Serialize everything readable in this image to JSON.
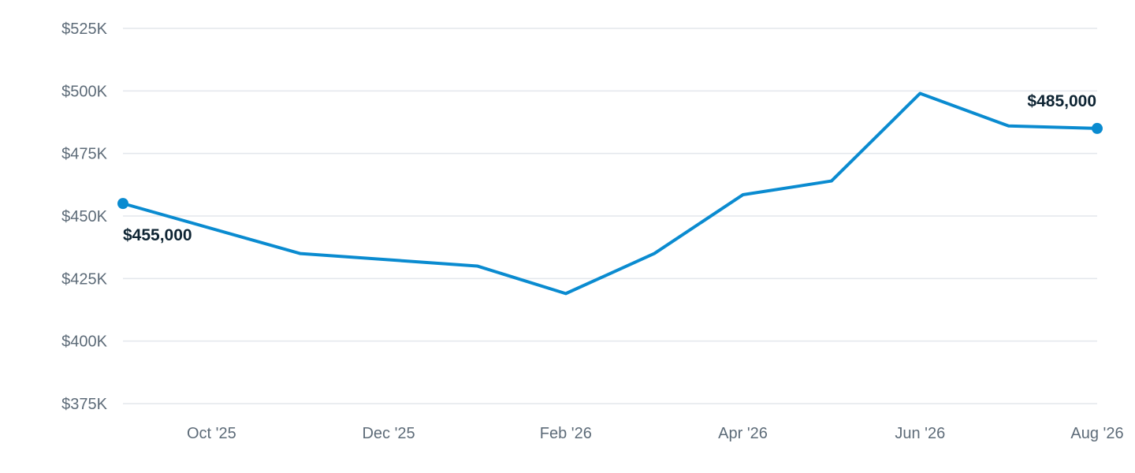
{
  "colors": {
    "series": "#0a8bd0",
    "grid": "#e3e7ec",
    "tick_text": "#5d6b78",
    "label_text": "#0e2433"
  },
  "chart_data": {
    "type": "line",
    "title": "",
    "xlabel": "",
    "ylabel": "",
    "grid": true,
    "ylim": [
      375000,
      525000
    ],
    "y_ticks": [
      375000,
      400000,
      425000,
      450000,
      475000,
      500000,
      525000
    ],
    "y_tick_labels": [
      "$375K",
      "$400K",
      "$425K",
      "$450K",
      "$475K",
      "$500K",
      "$525K"
    ],
    "x_range": [
      "2025-09",
      "2026-08"
    ],
    "x_ticks": [
      "2025-10",
      "2025-12",
      "2026-02",
      "2026-04",
      "2026-06",
      "2026-08"
    ],
    "x_tick_labels": [
      "Oct '25",
      "Dec '25",
      "Feb '26",
      "Apr '26",
      "Jun '26",
      "Aug '26"
    ],
    "series": [
      {
        "x": [
          "2025-09",
          "2025-11",
          "2026-01",
          "2026-02",
          "2026-03",
          "2026-04",
          "2026-05",
          "2026-06",
          "2026-07",
          "2026-08"
        ],
        "values": [
          455000,
          435000,
          430000,
          419000,
          435000,
          458500,
          464000,
          499000,
          486000,
          485000
        ]
      }
    ],
    "annotations": [
      {
        "x": "2025-09",
        "value": 455000,
        "text": "$455,000"
      },
      {
        "x": "2026-08",
        "value": 485000,
        "text": "$485,000"
      }
    ]
  }
}
